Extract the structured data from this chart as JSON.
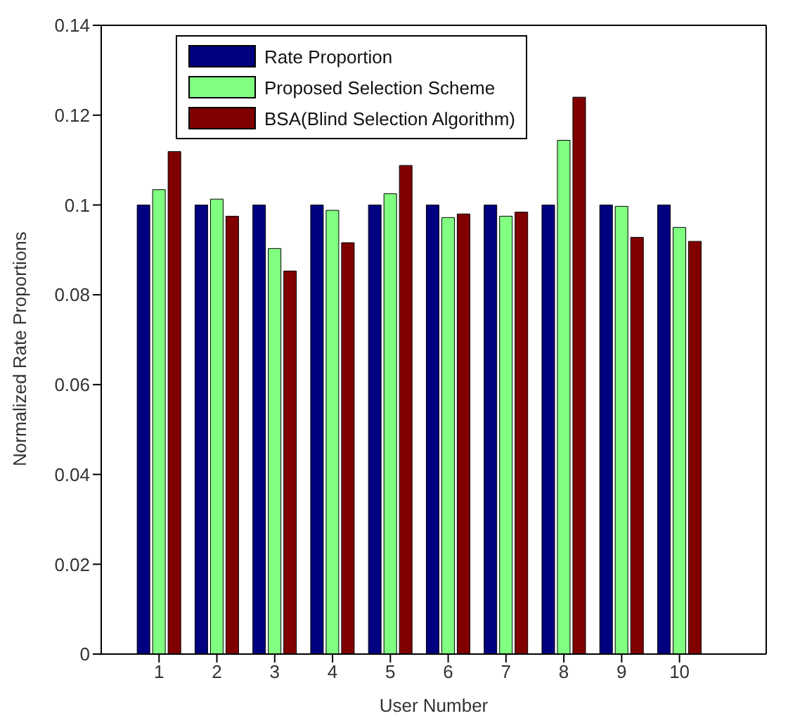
{
  "chart_data": {
    "type": "bar",
    "xlabel": "User Number",
    "ylabel": "Normalized Rate Proportions",
    "x": [
      1,
      2,
      3,
      4,
      5,
      6,
      7,
      8,
      9,
      10
    ],
    "xlim": [
      0,
      11.5
    ],
    "xticks": [
      1,
      2,
      3,
      4,
      5,
      6,
      7,
      8,
      9,
      10
    ],
    "ylim": [
      0,
      0.14
    ],
    "yticks": [
      0,
      0.02,
      0.04,
      0.06,
      0.08,
      0.1,
      0.12,
      0.14
    ],
    "grid": false,
    "legend": "top left",
    "series": [
      {
        "name": "Rate Proportion",
        "color": "#000080",
        "values": [
          0.1,
          0.1,
          0.1,
          0.1,
          0.1,
          0.1,
          0.1,
          0.1,
          0.1,
          0.1
        ]
      },
      {
        "name": "Proposed Selection Scheme",
        "color": "#80ff80",
        "values": [
          0.1034,
          0.1013,
          0.0903,
          0.0988,
          0.1025,
          0.0972,
          0.0975,
          0.1144,
          0.0997,
          0.095
        ]
      },
      {
        "name": "BSA(Blind Selection Algorithm)",
        "color": "#800000",
        "values": [
          0.1119,
          0.0975,
          0.0853,
          0.0916,
          0.1088,
          0.098,
          0.0984,
          0.124,
          0.0928,
          0.0919
        ]
      }
    ]
  }
}
